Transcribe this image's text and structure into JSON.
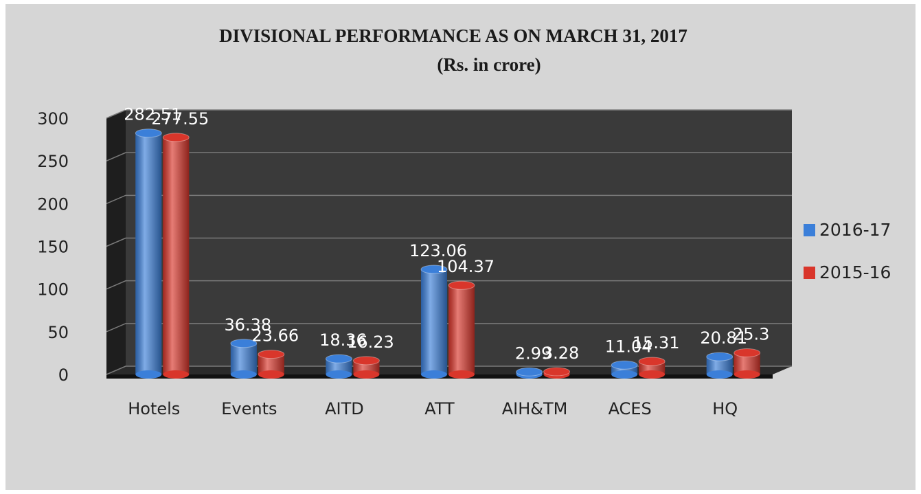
{
  "chart_data": {
    "type": "bar",
    "title": "DIVISIONAL PERFORMANCE AS ON MARCH 31, 2017",
    "subtitle": "(Rs. in crore)",
    "categories": [
      "Hotels",
      "Events",
      "AITD",
      "ATT",
      "AIH&TM",
      "ACES",
      "HQ"
    ],
    "series": [
      {
        "name": "2016-17",
        "color": "#3b7fd9",
        "values": [
          282.51,
          36.38,
          18.36,
          123.06,
          2.99,
          11.04,
          20.81
        ]
      },
      {
        "name": "2015-16",
        "color": "#d9362b",
        "values": [
          277.55,
          23.66,
          16.23,
          104.37,
          3.28,
          15.31,
          25.3
        ]
      }
    ],
    "ylim": [
      0,
      300
    ],
    "yticks": [
      0,
      50,
      100,
      150,
      200,
      250,
      300
    ],
    "grid": true,
    "legend": "right"
  }
}
